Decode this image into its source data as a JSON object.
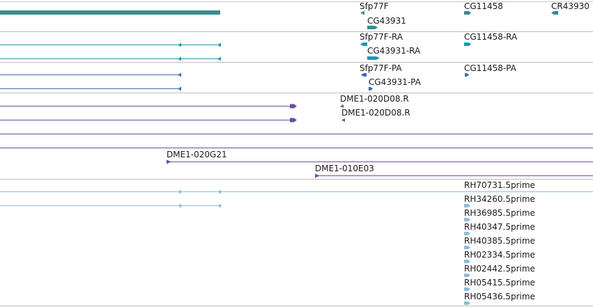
{
  "colors": {
    "gene": "#3a8a8c",
    "transcript": "#1a9ab6",
    "protein": "#3a6fbf",
    "probe": "#6b4f9e",
    "cdna": "#8cbfd8",
    "divider": "#bcbcbc"
  },
  "tracks": {
    "genes": {
      "labels": [
        "Sfp77F",
        "CG43931",
        "CG11458",
        "CR43930"
      ]
    },
    "transcripts": {
      "labels": [
        "Sfp77F-RA",
        "CG43931-RA",
        "CG11458-RA"
      ]
    },
    "proteins": {
      "labels": [
        "Sfp77F-PA",
        "CG43931-PA",
        "CG11458-PA"
      ]
    },
    "probes": {
      "labels": [
        "DME1-020D08.R",
        "DME1-020D08.R",
        "DME1-020G21",
        "DME1-010E03"
      ]
    },
    "cdnas": {
      "labels": [
        "RH70731.5prime",
        "RH34260.5prime",
        "RH36985.5prime",
        "RH40347.5prime",
        "RH40385.5prime",
        "RH02334.5prime",
        "RH02442.5prime",
        "RH05415.5prime",
        "RH05436.5prime"
      ]
    }
  }
}
